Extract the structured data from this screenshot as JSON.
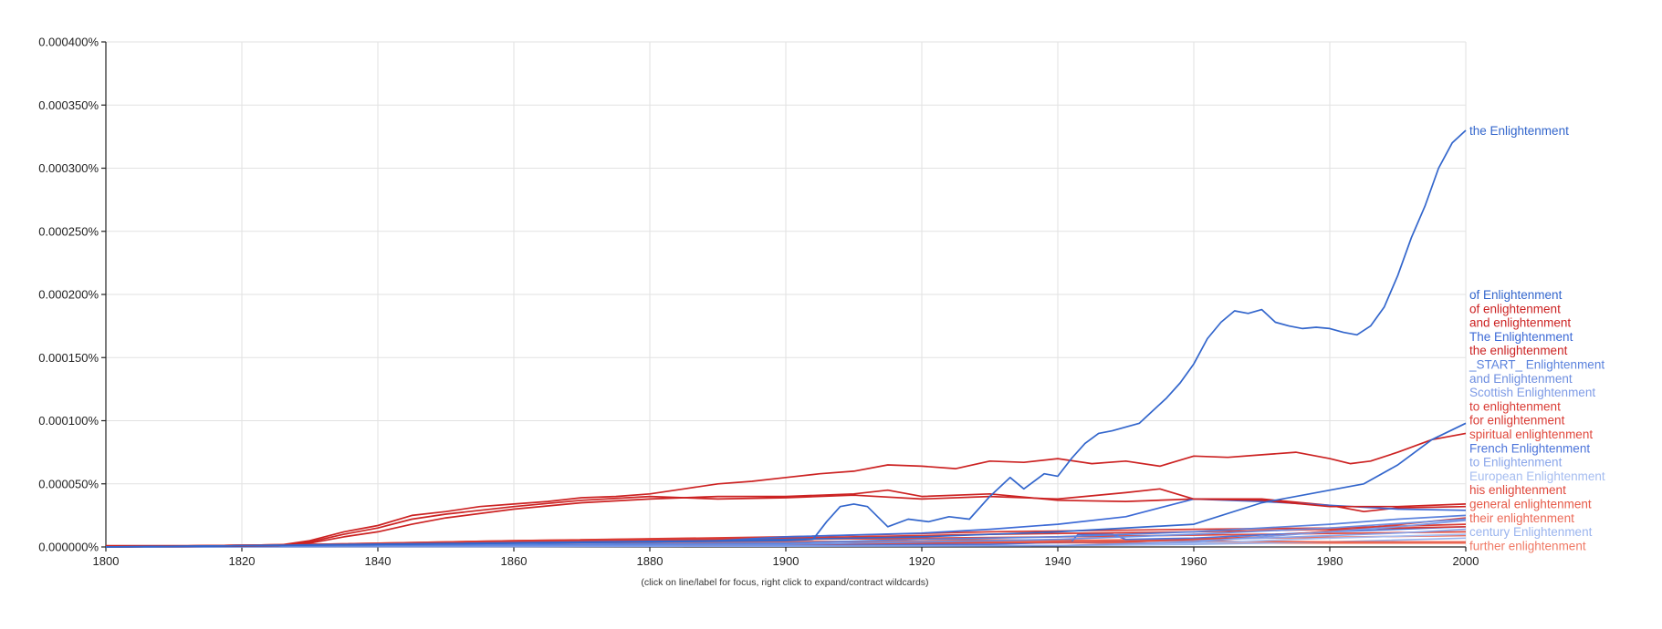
{
  "footer": {
    "hint": "(click on line/label for focus, right click to expand/contract wildcards)"
  },
  "chart_data": {
    "type": "line",
    "xlim": [
      1800,
      2000
    ],
    "ylim": [
      0,
      0.0004
    ],
    "x_ticks": [
      "1800",
      "1820",
      "1840",
      "1860",
      "1880",
      "1900",
      "1920",
      "1940",
      "1960",
      "1980",
      "2000"
    ],
    "y_ticks": [
      "0.000000%",
      "0.000050%",
      "0.000100%",
      "0.000150%",
      "0.000200%",
      "0.000250%",
      "0.000300%",
      "0.000350%",
      "0.000400%"
    ],
    "grid": true,
    "legend": "right",
    "series": [
      {
        "name": "the Enlightenment",
        "color": "#3366cc",
        "points": [
          [
            1800,
            0
          ],
          [
            1900,
            5e-06
          ],
          [
            1904,
            6e-06
          ],
          [
            1906,
            2e-05
          ],
          [
            1908,
            3.2e-05
          ],
          [
            1910,
            3.4e-05
          ],
          [
            1912,
            3.2e-05
          ],
          [
            1915,
            1.6e-05
          ],
          [
            1918,
            2.2e-05
          ],
          [
            1921,
            2e-05
          ],
          [
            1924,
            2.4e-05
          ],
          [
            1927,
            2.2e-05
          ],
          [
            1930,
            4e-05
          ],
          [
            1933,
            5.5e-05
          ],
          [
            1935,
            4.6e-05
          ],
          [
            1938,
            5.8e-05
          ],
          [
            1940,
            5.6e-05
          ],
          [
            1942,
            7e-05
          ],
          [
            1944,
            8.2e-05
          ],
          [
            1946,
            9e-05
          ],
          [
            1948,
            9.2e-05
          ],
          [
            1950,
            9.5e-05
          ],
          [
            1952,
            9.8e-05
          ],
          [
            1954,
            0.000108
          ],
          [
            1956,
            0.000118
          ],
          [
            1958,
            0.00013
          ],
          [
            1960,
            0.000145
          ],
          [
            1962,
            0.000165
          ],
          [
            1964,
            0.000178
          ],
          [
            1966,
            0.000187
          ],
          [
            1968,
            0.000185
          ],
          [
            1970,
            0.000188
          ],
          [
            1972,
            0.000178
          ],
          [
            1974,
            0.000175
          ],
          [
            1976,
            0.000173
          ],
          [
            1978,
            0.000174
          ],
          [
            1980,
            0.000173
          ],
          [
            1982,
            0.00017
          ],
          [
            1984,
            0.000168
          ],
          [
            1986,
            0.000175
          ],
          [
            1988,
            0.00019
          ],
          [
            1990,
            0.000215
          ],
          [
            1992,
            0.000245
          ],
          [
            1994,
            0.00027
          ],
          [
            1996,
            0.0003
          ],
          [
            1998,
            0.00032
          ],
          [
            2000,
            0.00033
          ]
        ]
      },
      {
        "name": "of Enlightenment",
        "color": "#3366cc",
        "points": [
          [
            1800,
            0
          ],
          [
            1880,
            4e-06
          ],
          [
            1900,
            6e-06
          ],
          [
            1920,
            8e-06
          ],
          [
            1940,
            1.2e-05
          ],
          [
            1960,
            1.8e-05
          ],
          [
            1970,
            3.5e-05
          ],
          [
            1980,
            4.5e-05
          ],
          [
            1985,
            5e-05
          ],
          [
            1990,
            6.5e-05
          ],
          [
            1995,
            8.5e-05
          ],
          [
            2000,
            9.8e-05
          ]
        ]
      },
      {
        "name": "of enlightenment",
        "color": "#cc2222",
        "points": [
          [
            1800,
            1e-06
          ],
          [
            1825,
            1e-06
          ],
          [
            1830,
            5e-06
          ],
          [
            1835,
            1.2e-05
          ],
          [
            1840,
            1.7e-05
          ],
          [
            1845,
            2.5e-05
          ],
          [
            1850,
            2.8e-05
          ],
          [
            1855,
            3.2e-05
          ],
          [
            1860,
            3.4e-05
          ],
          [
            1865,
            3.6e-05
          ],
          [
            1870,
            3.9e-05
          ],
          [
            1875,
            4e-05
          ],
          [
            1880,
            4.2e-05
          ],
          [
            1885,
            4.6e-05
          ],
          [
            1890,
            5e-05
          ],
          [
            1895,
            5.2e-05
          ],
          [
            1900,
            5.5e-05
          ],
          [
            1905,
            5.8e-05
          ],
          [
            1910,
            6e-05
          ],
          [
            1915,
            6.5e-05
          ],
          [
            1920,
            6.4e-05
          ],
          [
            1925,
            6.2e-05
          ],
          [
            1930,
            6.8e-05
          ],
          [
            1935,
            6.7e-05
          ],
          [
            1940,
            7e-05
          ],
          [
            1945,
            6.6e-05
          ],
          [
            1950,
            6.8e-05
          ],
          [
            1955,
            6.4e-05
          ],
          [
            1960,
            7.2e-05
          ],
          [
            1965,
            7.1e-05
          ],
          [
            1970,
            7.3e-05
          ],
          [
            1975,
            7.5e-05
          ],
          [
            1980,
            7e-05
          ],
          [
            1983,
            6.6e-05
          ],
          [
            1986,
            6.8e-05
          ],
          [
            1990,
            7.5e-05
          ],
          [
            1995,
            8.5e-05
          ],
          [
            2000,
            9e-05
          ]
        ]
      },
      {
        "name": "and enlightenment",
        "color": "#cc2222",
        "points": [
          [
            1800,
            0
          ],
          [
            1825,
            1e-06
          ],
          [
            1830,
            4e-06
          ],
          [
            1835,
            1e-05
          ],
          [
            1840,
            1.5e-05
          ],
          [
            1845,
            2.2e-05
          ],
          [
            1850,
            2.6e-05
          ],
          [
            1860,
            3.2e-05
          ],
          [
            1870,
            3.7e-05
          ],
          [
            1880,
            4e-05
          ],
          [
            1890,
            3.8e-05
          ],
          [
            1900,
            3.9e-05
          ],
          [
            1910,
            4.1e-05
          ],
          [
            1920,
            3.8e-05
          ],
          [
            1930,
            4e-05
          ],
          [
            1940,
            3.8e-05
          ],
          [
            1950,
            4.3e-05
          ],
          [
            1955,
            4.6e-05
          ],
          [
            1960,
            3.8e-05
          ],
          [
            1970,
            3.7e-05
          ],
          [
            1980,
            3.2e-05
          ],
          [
            1990,
            3.2e-05
          ],
          [
            2000,
            3.4e-05
          ]
        ]
      },
      {
        "name": "The Enlightenment",
        "color": "#3d6ad6",
        "points": [
          [
            1800,
            0
          ],
          [
            1890,
            5e-06
          ],
          [
            1900,
            8e-06
          ],
          [
            1920,
            1.1e-05
          ],
          [
            1930,
            1.4e-05
          ],
          [
            1940,
            1.8e-05
          ],
          [
            1950,
            2.4e-05
          ],
          [
            1960,
            3.8e-05
          ],
          [
            1965,
            3.7e-05
          ],
          [
            1970,
            3.6e-05
          ],
          [
            1980,
            3.3e-05
          ],
          [
            1990,
            3e-05
          ],
          [
            2000,
            2.9e-05
          ]
        ]
      },
      {
        "name": "the enlightenment",
        "color": "#cc2222",
        "points": [
          [
            1800,
            0
          ],
          [
            1825,
            1e-06
          ],
          [
            1830,
            3e-06
          ],
          [
            1835,
            8e-06
          ],
          [
            1840,
            1.2e-05
          ],
          [
            1845,
            1.8e-05
          ],
          [
            1850,
            2.3e-05
          ],
          [
            1860,
            3e-05
          ],
          [
            1870,
            3.5e-05
          ],
          [
            1880,
            3.8e-05
          ],
          [
            1890,
            4e-05
          ],
          [
            1900,
            4e-05
          ],
          [
            1910,
            4.2e-05
          ],
          [
            1915,
            4.5e-05
          ],
          [
            1920,
            4e-05
          ],
          [
            1930,
            4.2e-05
          ],
          [
            1940,
            3.7e-05
          ],
          [
            1950,
            3.6e-05
          ],
          [
            1960,
            3.8e-05
          ],
          [
            1970,
            3.8e-05
          ],
          [
            1980,
            3.3e-05
          ],
          [
            1985,
            2.8e-05
          ],
          [
            1990,
            3.1e-05
          ],
          [
            2000,
            3.2e-05
          ]
        ]
      },
      {
        "name": "_START_ Enlightenment",
        "color": "#5a82dd",
        "points": [
          [
            1800,
            0
          ],
          [
            1900,
            3e-06
          ],
          [
            1920,
            6e-06
          ],
          [
            1940,
            8e-06
          ],
          [
            1960,
            1.2e-05
          ],
          [
            1980,
            1.8e-05
          ],
          [
            1990,
            2.2e-05
          ],
          [
            2000,
            2.5e-05
          ]
        ]
      },
      {
        "name": "and Enlightenment",
        "color": "#6f8fe0",
        "points": [
          [
            1800,
            0
          ],
          [
            1900,
            2e-06
          ],
          [
            1920,
            4e-06
          ],
          [
            1940,
            6e-06
          ],
          [
            1960,
            1e-05
          ],
          [
            1980,
            1.5e-05
          ],
          [
            2000,
            2.2e-05
          ]
        ]
      },
      {
        "name": "Scottish Enlightenment",
        "color": "#7e9be6",
        "points": [
          [
            1800,
            0
          ],
          [
            1940,
            1e-06
          ],
          [
            1960,
            4e-06
          ],
          [
            1970,
            8e-06
          ],
          [
            1980,
            1.2e-05
          ],
          [
            1990,
            1.6e-05
          ],
          [
            2000,
            2.1e-05
          ]
        ]
      },
      {
        "name": "to enlightenment",
        "color": "#d93a33",
        "points": [
          [
            1800,
            0
          ],
          [
            1830,
            2e-06
          ],
          [
            1860,
            5e-06
          ],
          [
            1900,
            8e-06
          ],
          [
            1930,
            1.2e-05
          ],
          [
            1960,
            1.4e-05
          ],
          [
            1980,
            1.5e-05
          ],
          [
            2000,
            1.8e-05
          ]
        ]
      },
      {
        "name": "for enlightenment",
        "color": "#d93a33",
        "points": [
          [
            1800,
            0
          ],
          [
            1830,
            2e-06
          ],
          [
            1860,
            4e-06
          ],
          [
            1900,
            7e-06
          ],
          [
            1930,
            1e-05
          ],
          [
            1960,
            1.2e-05
          ],
          [
            1980,
            1.4e-05
          ],
          [
            2000,
            1.6e-05
          ]
        ]
      },
      {
        "name": "spiritual enlightenment",
        "color": "#e0483c",
        "points": [
          [
            1800,
            0
          ],
          [
            1900,
            2e-06
          ],
          [
            1920,
            3e-06
          ],
          [
            1950,
            4e-06
          ],
          [
            1970,
            8e-06
          ],
          [
            1985,
            1.5e-05
          ],
          [
            2000,
            2.3e-05
          ]
        ]
      },
      {
        "name": "French Enlightenment",
        "color": "#4c74da",
        "points": [
          [
            1800,
            0
          ],
          [
            1930,
            2e-06
          ],
          [
            1942,
            4e-06
          ],
          [
            1943,
            1e-05
          ],
          [
            1948,
            1e-05
          ],
          [
            1950,
            6e-06
          ],
          [
            1960,
            7e-06
          ],
          [
            1980,
            1.2e-05
          ],
          [
            2000,
            1.6e-05
          ]
        ]
      },
      {
        "name": "to Enlightenment",
        "color": "#8aa6ea",
        "points": [
          [
            1800,
            0
          ],
          [
            1920,
            2e-06
          ],
          [
            1950,
            4e-06
          ],
          [
            1970,
            7e-06
          ],
          [
            1990,
            1.1e-05
          ],
          [
            2000,
            1.4e-05
          ]
        ]
      },
      {
        "name": "European Enlightenment",
        "color": "#a6bdf0",
        "points": [
          [
            1800,
            0
          ],
          [
            1940,
            1e-06
          ],
          [
            1960,
            3e-06
          ],
          [
            1980,
            7e-06
          ],
          [
            2000,
            1e-05
          ]
        ]
      },
      {
        "name": "his enlightenment",
        "color": "#e0483c",
        "points": [
          [
            1800,
            0
          ],
          [
            1830,
            2e-06
          ],
          [
            1860,
            4e-06
          ],
          [
            1900,
            6e-06
          ],
          [
            1940,
            8e-06
          ],
          [
            1970,
            1e-05
          ],
          [
            2000,
            1.2e-05
          ]
        ]
      },
      {
        "name": "general enlightenment",
        "color": "#e65a48",
        "points": [
          [
            1800,
            0
          ],
          [
            1830,
            2e-06
          ],
          [
            1860,
            5e-06
          ],
          [
            1890,
            7e-06
          ],
          [
            1920,
            6e-06
          ],
          [
            1950,
            5e-06
          ],
          [
            1980,
            4e-06
          ],
          [
            2000,
            4e-06
          ]
        ]
      },
      {
        "name": "their enlightenment",
        "color": "#ec6a58",
        "points": [
          [
            1800,
            0
          ],
          [
            1830,
            1e-06
          ],
          [
            1860,
            3e-06
          ],
          [
            1900,
            4e-06
          ],
          [
            1940,
            5e-06
          ],
          [
            1970,
            7e-06
          ],
          [
            2000,
            9e-06
          ]
        ]
      },
      {
        "name": "century Enlightenment",
        "color": "#9ab4ee",
        "points": [
          [
            1800,
            0
          ],
          [
            1940,
            1e-06
          ],
          [
            1960,
            2e-06
          ],
          [
            1980,
            4e-06
          ],
          [
            2000,
            7e-06
          ]
        ]
      },
      {
        "name": "further enlightenment",
        "color": "#f07a66",
        "points": [
          [
            1800,
            0
          ],
          [
            1830,
            2e-06
          ],
          [
            1860,
            4e-06
          ],
          [
            1890,
            5e-06
          ],
          [
            1920,
            4e-06
          ],
          [
            1950,
            3e-06
          ],
          [
            1980,
            3e-06
          ],
          [
            2000,
            3e-06
          ]
        ]
      }
    ]
  }
}
